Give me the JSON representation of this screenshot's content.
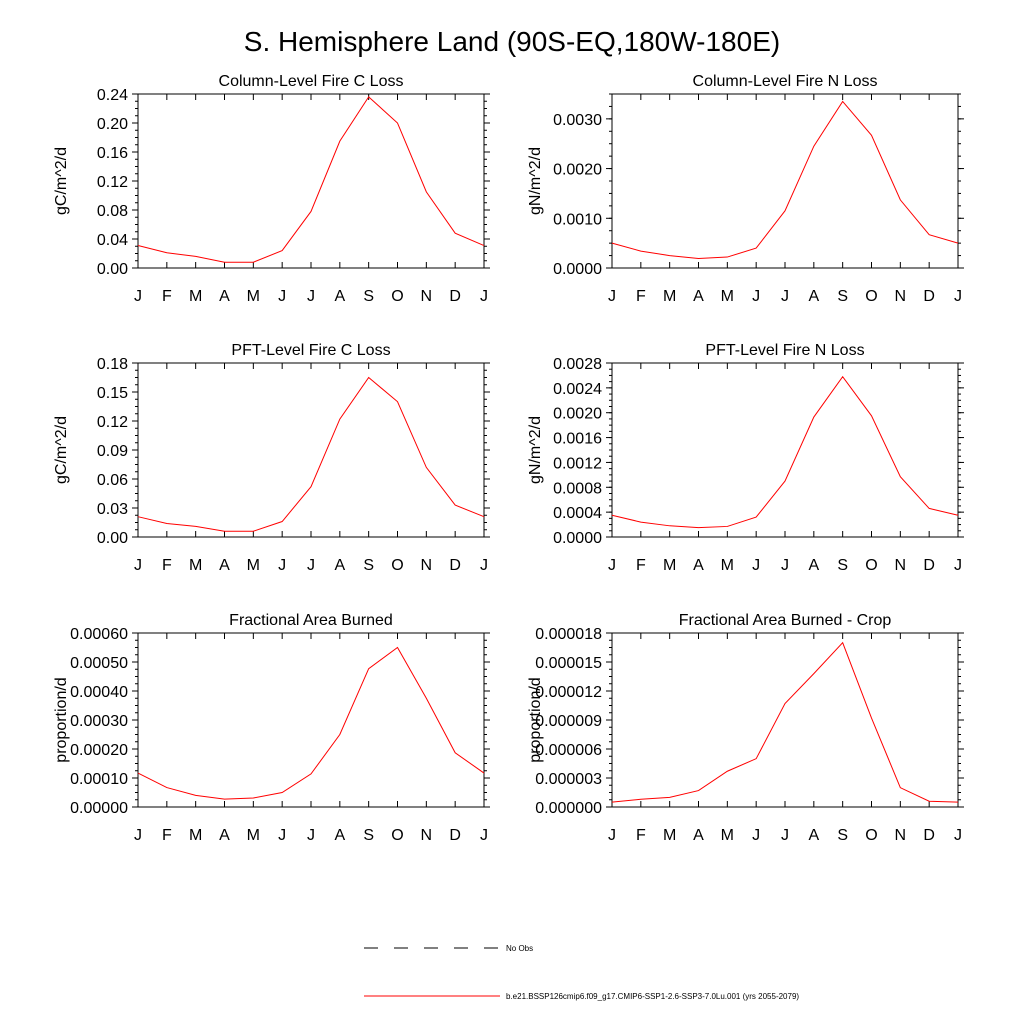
{
  "figure": {
    "title": "S. Hemisphere Land (90S-EQ,180W-180E)"
  },
  "chart_data": [
    {
      "type": "line",
      "title": "Column-Level Fire C Loss",
      "ylabel": "gC/m^2/d",
      "xlabel": "",
      "categories": [
        "J",
        "F",
        "M",
        "A",
        "M",
        "J",
        "J",
        "A",
        "S",
        "O",
        "N",
        "D",
        "J"
      ],
      "ylim": [
        0,
        0.24
      ],
      "yticks": [
        "0.00",
        "0.04",
        "0.08",
        "0.12",
        "0.16",
        "0.20",
        "0.24"
      ],
      "series": [
        {
          "values": [
            0.031,
            0.021,
            0.016,
            0.008,
            0.008,
            0.024,
            0.078,
            0.175,
            0.236,
            0.2,
            0.105,
            0.048,
            0.031
          ]
        }
      ]
    },
    {
      "type": "line",
      "title": "Column-Level Fire N Loss",
      "ylabel": "gN/m^2/d",
      "xlabel": "",
      "categories": [
        "J",
        "F",
        "M",
        "A",
        "M",
        "J",
        "J",
        "A",
        "S",
        "O",
        "N",
        "D",
        "J"
      ],
      "ylim": [
        0,
        0.0035
      ],
      "yticks": [
        "0.0000",
        "0.0010",
        "0.0020",
        "0.0030"
      ],
      "series": [
        {
          "values": [
            0.0005,
            0.00034,
            0.00025,
            0.00019,
            0.00022,
            0.0004,
            0.00115,
            0.00245,
            0.00335,
            0.00267,
            0.00137,
            0.00067,
            0.0005
          ]
        }
      ]
    },
    {
      "type": "line",
      "title": "PFT-Level Fire C Loss",
      "ylabel": "gC/m^2/d",
      "xlabel": "",
      "categories": [
        "J",
        "F",
        "M",
        "A",
        "M",
        "J",
        "J",
        "A",
        "S",
        "O",
        "N",
        "D",
        "J"
      ],
      "ylim": [
        0,
        0.18
      ],
      "yticks": [
        "0.00",
        "0.03",
        "0.06",
        "0.09",
        "0.12",
        "0.15",
        "0.18"
      ],
      "series": [
        {
          "values": [
            0.021,
            0.014,
            0.011,
            0.006,
            0.006,
            0.016,
            0.052,
            0.122,
            0.165,
            0.14,
            0.072,
            0.033,
            0.021
          ]
        }
      ]
    },
    {
      "type": "line",
      "title": "PFT-Level Fire N Loss",
      "ylabel": "gN/m^2/d",
      "xlabel": "",
      "categories": [
        "J",
        "F",
        "M",
        "A",
        "M",
        "J",
        "J",
        "A",
        "S",
        "O",
        "N",
        "D",
        "J"
      ],
      "ylim": [
        0,
        0.0028
      ],
      "yticks": [
        "0.0000",
        "0.0004",
        "0.0008",
        "0.0012",
        "0.0016",
        "0.0020",
        "0.0024",
        "0.0028"
      ],
      "series": [
        {
          "values": [
            0.00035,
            0.00024,
            0.00018,
            0.00015,
            0.00017,
            0.00032,
            0.0009,
            0.00193,
            0.00258,
            0.00195,
            0.00097,
            0.00046,
            0.00035
          ]
        }
      ]
    },
    {
      "type": "line",
      "title": "Fractional Area Burned",
      "ylabel": "proportion/d",
      "xlabel": "",
      "categories": [
        "J",
        "F",
        "M",
        "A",
        "M",
        "J",
        "J",
        "A",
        "S",
        "O",
        "N",
        "D",
        "J"
      ],
      "ylim": [
        0,
        0.0006
      ],
      "yticks": [
        "0.00000",
        "0.00010",
        "0.00020",
        "0.00030",
        "0.00040",
        "0.00050",
        "0.00060"
      ],
      "series": [
        {
          "values": [
            0.000117,
            6.7e-05,
            4e-05,
            2.7e-05,
            3.1e-05,
            5e-05,
            0.000114,
            0.00025,
            0.000477,
            0.00055,
            0.000375,
            0.000187,
            0.000117
          ]
        }
      ]
    },
    {
      "type": "line",
      "title": "Fractional Area Burned - Crop",
      "ylabel": "proportion/d",
      "xlabel": "",
      "categories": [
        "J",
        "F",
        "M",
        "A",
        "M",
        "J",
        "J",
        "A",
        "S",
        "O",
        "N",
        "D",
        "J"
      ],
      "ylim": [
        0,
        1.8e-05
      ],
      "yticks": [
        "0.000000",
        "0.000003",
        "0.000006",
        "0.000009",
        "0.000012",
        "0.000015",
        "0.000018"
      ],
      "series": [
        {
          "values": [
            5e-07,
            8e-07,
            1e-06,
            1.7e-06,
            3.7e-06,
            5e-06,
            1.07e-05,
            1.38e-05,
            1.7e-05,
            9.2e-06,
            2e-06,
            6e-07,
            5e-07
          ]
        }
      ]
    }
  ],
  "legend": {
    "placement": "bottom",
    "items": [
      {
        "label": "No Obs",
        "style": "dashed",
        "color": "#000000"
      },
      {
        "label": "b.e21.BSSP126cmip6.f09_g17.CMIP6-SSP1-2.6-SSP3-7.0Lu.001 (yrs 2055-2079)",
        "style": "solid",
        "color": "#ff0000"
      }
    ]
  },
  "colors": {
    "series": "#ff0000",
    "axis": "#000000"
  }
}
